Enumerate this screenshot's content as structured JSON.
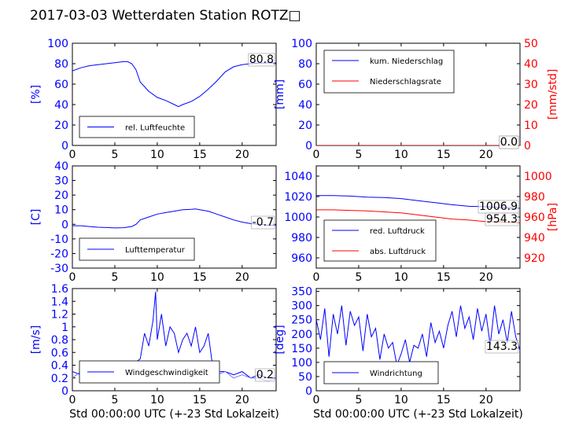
{
  "title": "2017-03-03 Wetterdaten Station ROTZ□",
  "colors": {
    "primary": "#0000ff",
    "secondary": "#ff0000",
    "light": "#7777ff",
    "frame": "#000000"
  },
  "chart_data": [
    {
      "id": "humidity",
      "type": "line",
      "xlim": [
        0,
        24
      ],
      "ylim": [
        0,
        100
      ],
      "xticks": [
        0,
        5,
        10,
        15,
        20
      ],
      "yticks": [
        0,
        20,
        40,
        60,
        80,
        100
      ],
      "ylabel": "[%]",
      "xlabel": "",
      "current_value": "80.8",
      "legend_position": "lower-left",
      "series": [
        {
          "name": "rel. Luftfeuchte",
          "color": "#0000ff",
          "x": [
            0,
            1,
            2,
            3,
            4,
            5,
            6,
            6.5,
            7,
            7.5,
            8,
            9,
            10,
            11,
            12,
            12.5,
            13,
            14,
            15,
            16,
            17,
            18,
            19,
            20,
            21,
            22,
            23,
            24
          ],
          "y": [
            73,
            76,
            78,
            79,
            80,
            81,
            82,
            82,
            80,
            74,
            62,
            53,
            47,
            44,
            40,
            38,
            40,
            43,
            48,
            55,
            63,
            72,
            77,
            79,
            80,
            80.5,
            80.8,
            80.8
          ]
        }
      ]
    },
    {
      "id": "precip",
      "type": "line",
      "xlim": [
        0,
        24
      ],
      "ylim": [
        0,
        100
      ],
      "y2lim": [
        0,
        50
      ],
      "xticks": [
        0,
        5,
        10,
        15,
        20
      ],
      "yticks": [
        0,
        20,
        40,
        60,
        80,
        100
      ],
      "y2ticks": [
        0,
        10,
        20,
        30,
        40,
        50
      ],
      "ylabel": "[mm]",
      "y2label": "[mm/std]",
      "xlabel": "",
      "current_value": "0.0",
      "current_value2": "0.0",
      "legend_position": "upper-left",
      "series": [
        {
          "name": "kum. Niederschlag",
          "color": "#0000ff",
          "axis": "left",
          "x": [
            0,
            24
          ],
          "y": [
            0,
            0
          ]
        },
        {
          "name": "Niederschlagsrate",
          "color": "#ff0000",
          "axis": "right",
          "x": [
            0,
            24
          ],
          "y": [
            0,
            0
          ]
        }
      ]
    },
    {
      "id": "temperature",
      "type": "line",
      "xlim": [
        0,
        24
      ],
      "ylim": [
        -30,
        40
      ],
      "xticks": [
        0,
        5,
        10,
        15,
        20
      ],
      "yticks": [
        -30,
        -20,
        -10,
        0,
        10,
        20,
        30,
        40
      ],
      "ylabel": "[C]",
      "xlabel": "",
      "current_value": "-0.7",
      "legend_position": "lower-left",
      "series": [
        {
          "name": "Lufttemperatur",
          "color": "#0000ff",
          "x": [
            0,
            1,
            2,
            3,
            4,
            5,
            6,
            7,
            7.5,
            8,
            9,
            10,
            11,
            12,
            13,
            14,
            14.5,
            15,
            16,
            17,
            18,
            19,
            20,
            21,
            22,
            23,
            24
          ],
          "y": [
            -1,
            -1,
            -1.5,
            -2,
            -2.2,
            -2.5,
            -2.3,
            -1.5,
            0,
            3,
            5,
            7,
            8,
            9,
            10,
            10.3,
            10.5,
            10,
            9,
            7,
            5,
            3,
            1.5,
            0.5,
            0,
            -0.5,
            -0.7
          ]
        }
      ]
    },
    {
      "id": "pressure",
      "type": "line",
      "xlim": [
        0,
        24
      ],
      "ylim": [
        950,
        1050
      ],
      "y2lim": [
        910,
        1010
      ],
      "xticks": [
        0,
        5,
        10,
        15,
        20
      ],
      "yticks": [
        960,
        980,
        1000,
        1020,
        1040
      ],
      "y2ticks": [
        920,
        940,
        960,
        980,
        1000
      ],
      "ylabel": "",
      "y2label": "[hPa]",
      "xlabel": "",
      "current_value": "1006.9",
      "current_value2": "954.3",
      "legend_position": "lower-left",
      "series": [
        {
          "name": "red. Luftdruck",
          "color": "#0000ff",
          "axis": "left",
          "x": [
            0,
            2,
            4,
            6,
            8,
            10,
            12,
            14,
            16,
            18,
            20,
            22,
            24
          ],
          "y": [
            1021,
            1021,
            1020.5,
            1019.5,
            1019,
            1018,
            1016,
            1014,
            1012,
            1010.5,
            1010,
            1009,
            1008.5
          ]
        },
        {
          "name": "abs. Luftdruck",
          "color": "#ff0000",
          "axis": "right",
          "x": [
            0,
            2,
            4,
            6,
            8,
            10,
            12,
            14,
            16,
            18,
            20,
            22,
            24
          ],
          "y": [
            967,
            967,
            966.5,
            966,
            965,
            964,
            962,
            960,
            958,
            957,
            955.5,
            955,
            954.3
          ]
        }
      ]
    },
    {
      "id": "wind-speed",
      "type": "line",
      "xlim": [
        0,
        24
      ],
      "ylim": [
        0,
        1.6
      ],
      "xticks": [
        0,
        5,
        10,
        15,
        20
      ],
      "yticks": [
        0,
        0.2,
        0.4,
        0.6,
        0.8,
        1.0,
        1.2,
        1.4,
        1.6
      ],
      "ylabel": "[m/s]",
      "xlabel": "Std 00:00:00 UTC (+-23 Std Lokalzeit)",
      "current_value": "0.2",
      "legend_position": "lower-left",
      "series": [
        {
          "name": "Windgeschwindigkeit",
          "color": "#0000ff",
          "x": [
            0,
            1,
            2,
            3,
            4,
            5,
            6,
            7,
            8,
            8.5,
            9,
            9.5,
            9.8,
            10,
            10.5,
            11,
            11.5,
            12,
            12.5,
            13,
            13.5,
            14,
            14.5,
            15,
            15.5,
            16,
            16.5,
            17,
            18,
            19,
            20,
            21,
            22,
            23,
            24
          ],
          "y": [
            0.3,
            0.25,
            0.35,
            0.3,
            0.4,
            0.3,
            0.35,
            0.4,
            0.5,
            0.9,
            0.7,
            1.1,
            1.55,
            0.8,
            1.2,
            0.7,
            1.0,
            0.9,
            0.6,
            0.8,
            0.9,
            0.7,
            1.0,
            0.6,
            0.7,
            0.9,
            0.4,
            0.3,
            0.3,
            0.25,
            0.3,
            0.2,
            0.25,
            0.2,
            0.2
          ]
        },
        {
          "name": "",
          "color": "#7777ff",
          "x": [
            0,
            1,
            2,
            3,
            4,
            5,
            6,
            7,
            8,
            9,
            10,
            11,
            12,
            13,
            14,
            15,
            16,
            17,
            18,
            19,
            20,
            21,
            22,
            23,
            24
          ],
          "y": [
            0.2,
            0.3,
            0.25,
            0.35,
            0.3,
            0.4,
            0.3,
            0.35,
            0.3,
            0.4,
            0.45,
            0.4,
            0.35,
            0.4,
            0.45,
            0.35,
            0.3,
            0.25,
            0.3,
            0.2,
            0.25,
            0.2,
            0.2,
            0.15,
            0.2
          ]
        }
      ]
    },
    {
      "id": "wind-dir",
      "type": "line",
      "xlim": [
        0,
        24
      ],
      "ylim": [
        0,
        360
      ],
      "xticks": [
        0,
        5,
        10,
        15,
        20
      ],
      "yticks": [
        0,
        50,
        100,
        150,
        200,
        250,
        300,
        350
      ],
      "ylabel": "[deg]",
      "xlabel": "Std 00:00:00 UTC (+-23 Std Lokalzeit)",
      "current_value": "143.3",
      "legend_position": "lower-left",
      "series": [
        {
          "name": "Windrichtung",
          "color": "#0000ff",
          "x": [
            0,
            0.5,
            1,
            1.5,
            2,
            2.5,
            3,
            3.5,
            4,
            4.5,
            5,
            5.5,
            6,
            6.5,
            7,
            7.5,
            8,
            8.5,
            9,
            9.5,
            10,
            10.5,
            11,
            11.5,
            12,
            12.5,
            13,
            13.5,
            14,
            14.5,
            15,
            15.5,
            16,
            16.5,
            17,
            17.5,
            18,
            18.5,
            19,
            19.5,
            20,
            20.5,
            21,
            21.5,
            22,
            22.5,
            23,
            23.5,
            24
          ],
          "y": [
            250,
            180,
            290,
            120,
            270,
            200,
            300,
            160,
            280,
            230,
            260,
            140,
            270,
            190,
            220,
            110,
            200,
            150,
            170,
            90,
            130,
            180,
            100,
            160,
            150,
            200,
            120,
            240,
            170,
            210,
            150,
            230,
            280,
            190,
            300,
            220,
            260,
            180,
            290,
            210,
            270,
            160,
            300,
            200,
            250,
            170,
            280,
            190,
            143.3
          ]
        }
      ]
    }
  ]
}
